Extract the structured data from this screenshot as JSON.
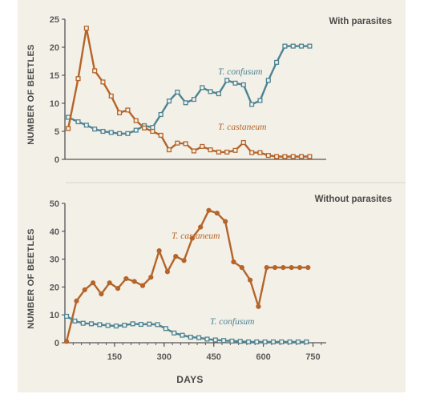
{
  "colors": {
    "background": "#f3f0e7",
    "castaneum": "#b5642a",
    "confusum": "#4e8494",
    "axis": "#555555",
    "separator": "#e2ded2"
  },
  "shared": {
    "xlabel": "DAYS",
    "x_ticks": [
      150,
      300,
      450,
      600,
      750
    ],
    "x_tick_labels": [
      "150",
      "300",
      "450",
      "600",
      "750"
    ],
    "ylabel": "NUMBER OF BEETLES"
  },
  "chart_data": [
    {
      "type": "line",
      "title": "With parasites",
      "ylabel": "NUMBER OF BEETLES",
      "xlim": [
        0,
        790
      ],
      "ylim": [
        0,
        25
      ],
      "y_ticks": [
        0,
        5,
        10,
        15,
        20,
        25
      ],
      "y_tick_labels": [
        "0",
        "5",
        "10",
        "15",
        "20",
        "25"
      ],
      "series": [
        {
          "name": "T. confusum",
          "color": "#4e8494",
          "marker": "square-open",
          "x": [
            10,
            40,
            65,
            90,
            115,
            140,
            165,
            190,
            215,
            240,
            265,
            290,
            315,
            340,
            365,
            390,
            415,
            440,
            465,
            490,
            515,
            540,
            565,
            590,
            615,
            640,
            665,
            690,
            715,
            740
          ],
          "y": [
            7.5,
            6.7,
            6.1,
            5.4,
            5.0,
            4.8,
            4.6,
            4.6,
            5.2,
            6.0,
            5.7,
            8.0,
            10.4,
            12.0,
            10.1,
            10.7,
            12.8,
            12.1,
            11.7,
            14.1,
            13.6,
            13.3,
            9.8,
            10.5,
            14.1,
            17.3,
            20.2,
            20.2,
            20.2,
            20.2
          ]
        },
        {
          "name": "T. castaneum",
          "color": "#b5642a",
          "marker": "square-open",
          "x": [
            10,
            40,
            65,
            90,
            115,
            140,
            165,
            190,
            215,
            240,
            265,
            290,
            315,
            340,
            365,
            390,
            415,
            440,
            465,
            490,
            515,
            540,
            565,
            590,
            615,
            640,
            665,
            690,
            715,
            740
          ],
          "y": [
            5.5,
            14.4,
            23.4,
            15.8,
            13.8,
            11.3,
            8.3,
            8.8,
            6.9,
            5.6,
            5.0,
            4.3,
            1.7,
            2.9,
            2.8,
            1.5,
            2.3,
            1.7,
            1.3,
            1.3,
            1.6,
            3.0,
            1.2,
            1.2,
            0.7,
            0.5,
            0.5,
            0.5,
            0.5,
            0.5
          ]
        }
      ]
    },
    {
      "type": "line",
      "title": "Without parasites",
      "ylabel": "NUMBER OF BEETLES",
      "xlabel": "DAYS",
      "xlim": [
        0,
        790
      ],
      "ylim": [
        0,
        50
      ],
      "y_ticks": [
        0,
        10,
        20,
        30,
        40,
        50
      ],
      "y_tick_labels": [
        "0",
        "10",
        "20",
        "30",
        "40",
        "50"
      ],
      "x_ticks": [
        150,
        300,
        450,
        600,
        750
      ],
      "x_tick_labels": [
        "150",
        "300",
        "450",
        "600",
        "750"
      ],
      "series": [
        {
          "name": "T. castaneum",
          "color": "#b5642a",
          "marker": "circle",
          "x": [
            5,
            35,
            60,
            85,
            110,
            135,
            160,
            185,
            210,
            235,
            260,
            285,
            310,
            335,
            360,
            385,
            410,
            435,
            460,
            485,
            510,
            535,
            560,
            585,
            610,
            635,
            660,
            685,
            710,
            735
          ],
          "y": [
            0.5,
            15,
            19,
            21.5,
            17.5,
            21.5,
            19.5,
            23,
            22,
            20.5,
            23.5,
            33,
            25.5,
            31,
            29.5,
            37.5,
            41.5,
            47.5,
            46.5,
            43.5,
            29,
            27,
            22.5,
            13,
            27,
            27,
            27,
            27,
            27,
            27
          ]
        },
        {
          "name": "T. confusum",
          "color": "#4e8494",
          "marker": "square-open",
          "x": [
            5,
            30,
            55,
            80,
            105,
            130,
            155,
            180,
            205,
            230,
            255,
            280,
            305,
            330,
            355,
            380,
            405,
            430,
            455,
            480,
            505,
            530,
            555,
            580,
            605,
            630,
            655,
            680,
            705,
            730
          ],
          "y": [
            9.5,
            7.8,
            7.0,
            6.8,
            6.5,
            6.2,
            6.0,
            6.3,
            6.8,
            6.6,
            6.7,
            6.5,
            5.1,
            3.5,
            2.7,
            2.0,
            1.8,
            1.3,
            1.0,
            0.8,
            0.6,
            0.5,
            0.3,
            0.3,
            0.3,
            0.3,
            0.3,
            0.3,
            0.3,
            0.3
          ]
        }
      ]
    }
  ]
}
